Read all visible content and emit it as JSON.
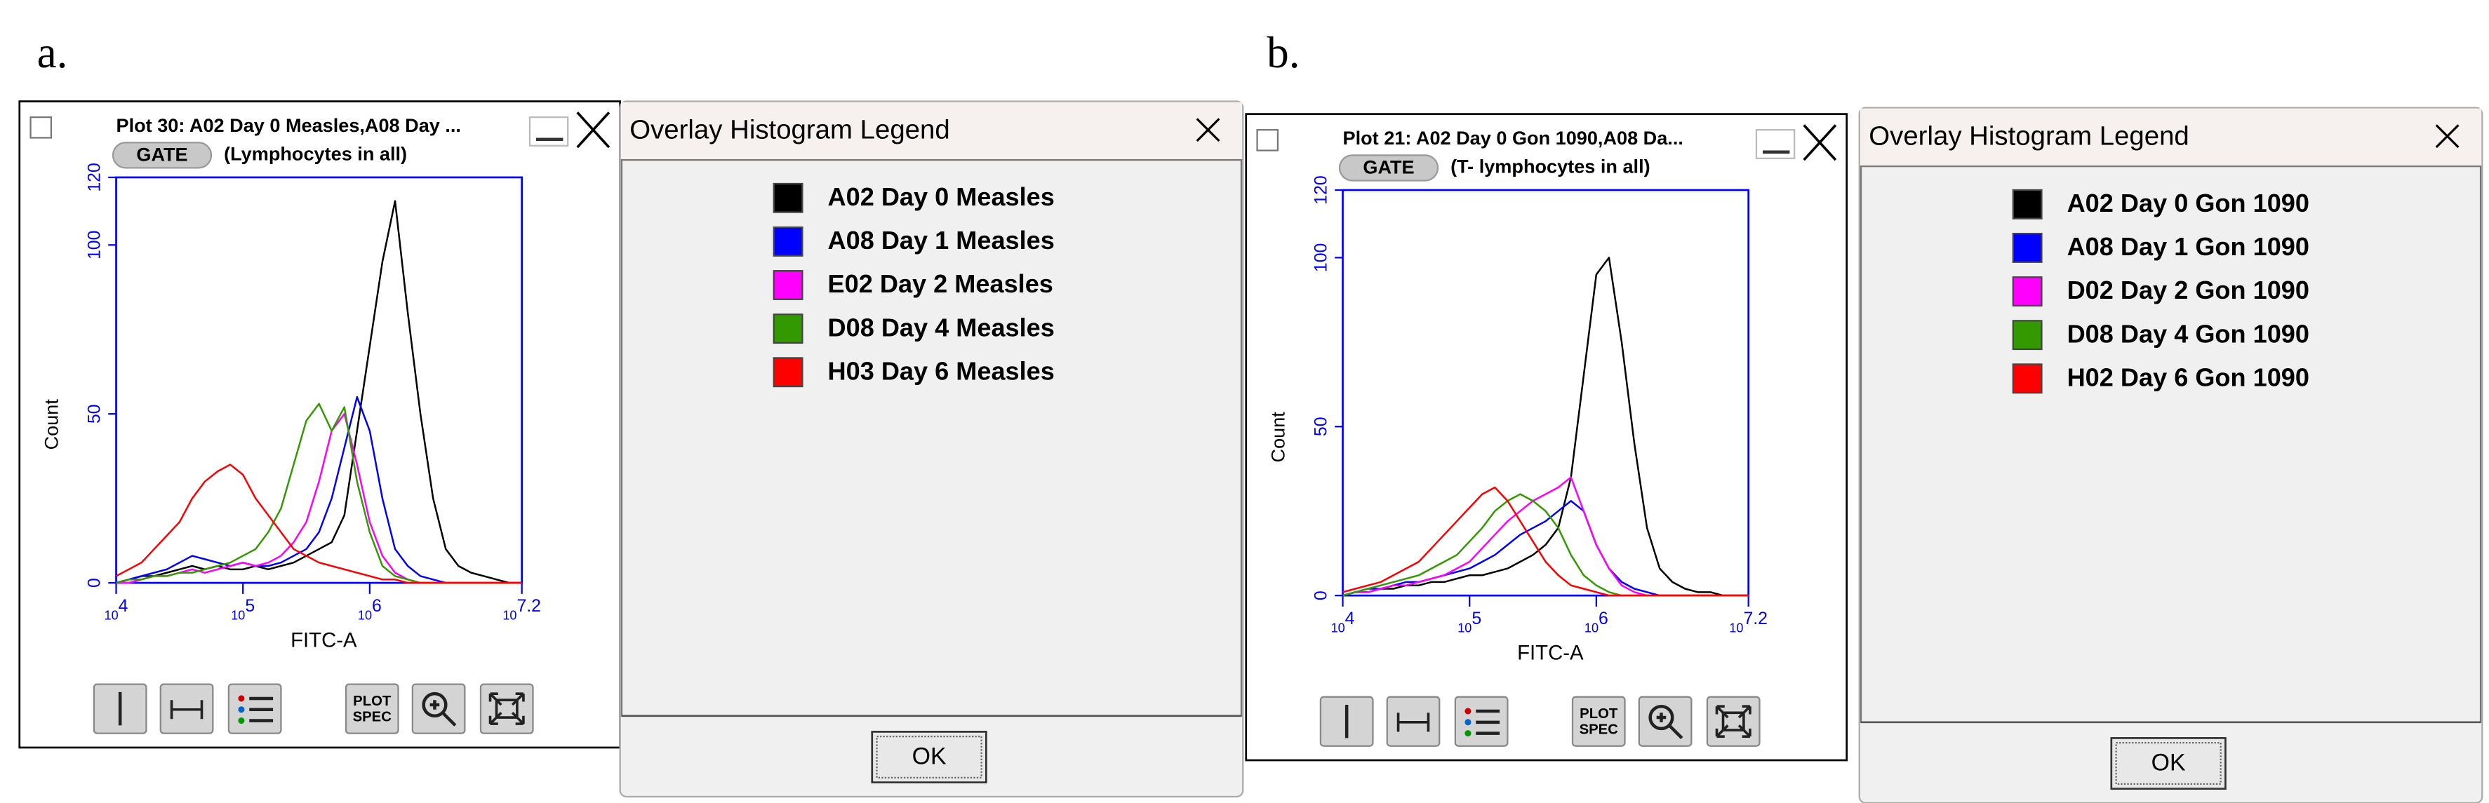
{
  "panels": [
    {
      "label": "a.",
      "gate": "GATE",
      "gate_note": "(Lymphocytes in all)",
      "legend_title": "Overlay Histogram Legend",
      "ok": "OK",
      "plot_spec_top": "PLOT",
      "plot_spec_bottom": "SPEC"
    },
    {
      "label": "b.",
      "gate": "GATE",
      "gate_note": "(T- lymphocytes in all)",
      "legend_title": "Overlay Histogram Legend",
      "ok": "OK",
      "plot_spec_top": "PLOT",
      "plot_spec_bottom": "SPEC"
    }
  ],
  "chart_data": [
    {
      "type": "line",
      "title": "Plot 30: A02 Day 0 Measles,A08 Day ...",
      "x_label": "FITC-A",
      "y_label": "Count",
      "xscale": "log",
      "xlim": [
        10000,
        15848932
      ],
      "ylim": [
        0,
        120
      ],
      "xticks": [
        {
          "value": 10000,
          "label": "10",
          "exponent": "4"
        },
        {
          "value": 100000,
          "label": "10",
          "exponent": "5"
        },
        {
          "value": 1000000,
          "label": "10",
          "exponent": "6"
        },
        {
          "value": 15848932,
          "label": "10",
          "exponent": "7.2"
        }
      ],
      "yticks": [
        0,
        50,
        100,
        120
      ],
      "x": [
        10000,
        12589,
        15849,
        19953,
        25119,
        31623,
        39811,
        50119,
        63096,
        79433,
        100000,
        125893,
        158489,
        199526,
        251189,
        316228,
        398107,
        501187,
        630957,
        794328,
        1000000,
        1258925,
        1584893,
        1995262,
        2511886,
        3162278,
        3981072,
        5011872,
        6309573,
        7943282,
        10000000,
        12589254,
        15848932
      ],
      "series": [
        {
          "name": "A02 Day 0 Measles",
          "color": "#000000",
          "values": [
            0,
            1,
            2,
            2,
            3,
            4,
            5,
            4,
            5,
            4,
            4,
            5,
            4,
            5,
            6,
            8,
            10,
            12,
            20,
            45,
            70,
            95,
            113,
            80,
            50,
            25,
            10,
            5,
            3,
            2,
            1,
            0,
            0
          ]
        },
        {
          "name": "A08 Day 1 Measles",
          "color": "#0000ff",
          "values": [
            0,
            1,
            2,
            3,
            4,
            6,
            8,
            7,
            6,
            5,
            6,
            5,
            5,
            6,
            8,
            10,
            15,
            25,
            40,
            55,
            45,
            25,
            10,
            5,
            2,
            1,
            0,
            0,
            0,
            0,
            0,
            0,
            0
          ]
        },
        {
          "name": "E02 Day 2 Measles",
          "color": "#ff00ff",
          "values": [
            0,
            0,
            1,
            2,
            2,
            3,
            4,
            3,
            4,
            5,
            6,
            5,
            6,
            8,
            12,
            18,
            30,
            45,
            50,
            35,
            18,
            8,
            3,
            1,
            0,
            0,
            0,
            0,
            0,
            0,
            0,
            0,
            0
          ]
        },
        {
          "name": "D08 Day 4 Measles",
          "color": "#339900",
          "values": [
            0,
            1,
            1,
            2,
            2,
            3,
            3,
            4,
            5,
            6,
            8,
            10,
            15,
            22,
            35,
            48,
            53,
            45,
            52,
            30,
            15,
            5,
            2,
            1,
            0,
            0,
            0,
            0,
            0,
            0,
            0,
            0,
            0
          ]
        },
        {
          "name": "H03 Day 6 Measles",
          "color": "#ff0000",
          "values": [
            2,
            4,
            6,
            10,
            14,
            18,
            25,
            30,
            33,
            35,
            32,
            25,
            20,
            15,
            10,
            8,
            6,
            5,
            4,
            3,
            2,
            1,
            1,
            0,
            0,
            0,
            0,
            0,
            0,
            0,
            0,
            0,
            0
          ]
        }
      ]
    },
    {
      "type": "line",
      "title": "Plot 21: A02 Day 0 Gon 1090,A08 Da...",
      "x_label": "FITC-A",
      "y_label": "Count",
      "xscale": "log",
      "xlim": [
        10000,
        15848932
      ],
      "ylim": [
        0,
        120
      ],
      "xticks": [
        {
          "value": 10000,
          "label": "10",
          "exponent": "4"
        },
        {
          "value": 100000,
          "label": "10",
          "exponent": "5"
        },
        {
          "value": 1000000,
          "label": "10",
          "exponent": "6"
        },
        {
          "value": 15848932,
          "label": "10",
          "exponent": "7.2"
        }
      ],
      "yticks": [
        0,
        50,
        100,
        120
      ],
      "x": [
        10000,
        12589,
        15849,
        19953,
        25119,
        31623,
        39811,
        50119,
        63096,
        79433,
        100000,
        125893,
        158489,
        199526,
        251189,
        316228,
        398107,
        501187,
        630957,
        794328,
        1000000,
        1258925,
        1584893,
        1995262,
        2511886,
        3162278,
        3981072,
        5011872,
        6309573,
        7943282,
        10000000,
        12589254,
        15848932
      ],
      "series": [
        {
          "name": "A02 Day 0 Gon 1090",
          "color": "#000000",
          "values": [
            0,
            1,
            1,
            2,
            2,
            3,
            3,
            4,
            4,
            5,
            6,
            6,
            7,
            8,
            10,
            12,
            15,
            20,
            35,
            65,
            95,
            100,
            75,
            45,
            20,
            8,
            4,
            2,
            1,
            1,
            0,
            0,
            0
          ]
        },
        {
          "name": "A08 Day 1 Gon 1090",
          "color": "#0000ff",
          "values": [
            0,
            1,
            2,
            2,
            3,
            4,
            4,
            5,
            6,
            7,
            8,
            10,
            12,
            15,
            18,
            20,
            22,
            25,
            28,
            25,
            15,
            8,
            4,
            2,
            1,
            0,
            0,
            0,
            0,
            0,
            0,
            0,
            0
          ]
        },
        {
          "name": "D02 Day 2 Gon 1090",
          "color": "#ff00ff",
          "values": [
            0,
            1,
            1,
            2,
            3,
            3,
            4,
            5,
            6,
            8,
            10,
            14,
            18,
            22,
            25,
            28,
            30,
            32,
            35,
            25,
            15,
            8,
            3,
            1,
            0,
            0,
            0,
            0,
            0,
            0,
            0,
            0,
            0
          ]
        },
        {
          "name": "D08 Day 4 Gon 1090",
          "color": "#339900",
          "values": [
            0,
            1,
            2,
            3,
            4,
            5,
            6,
            8,
            10,
            12,
            16,
            20,
            25,
            28,
            30,
            28,
            25,
            20,
            12,
            6,
            3,
            1,
            0,
            0,
            0,
            0,
            0,
            0,
            0,
            0,
            0,
            0,
            0
          ]
        },
        {
          "name": "H02 Day 6 Gon 1090",
          "color": "#ff0000",
          "values": [
            1,
            2,
            3,
            4,
            6,
            8,
            10,
            14,
            18,
            22,
            26,
            30,
            32,
            28,
            22,
            16,
            10,
            6,
            3,
            2,
            1,
            0,
            0,
            0,
            0,
            0,
            0,
            0,
            0,
            0,
            0,
            0,
            0
          ]
        }
      ]
    }
  ]
}
